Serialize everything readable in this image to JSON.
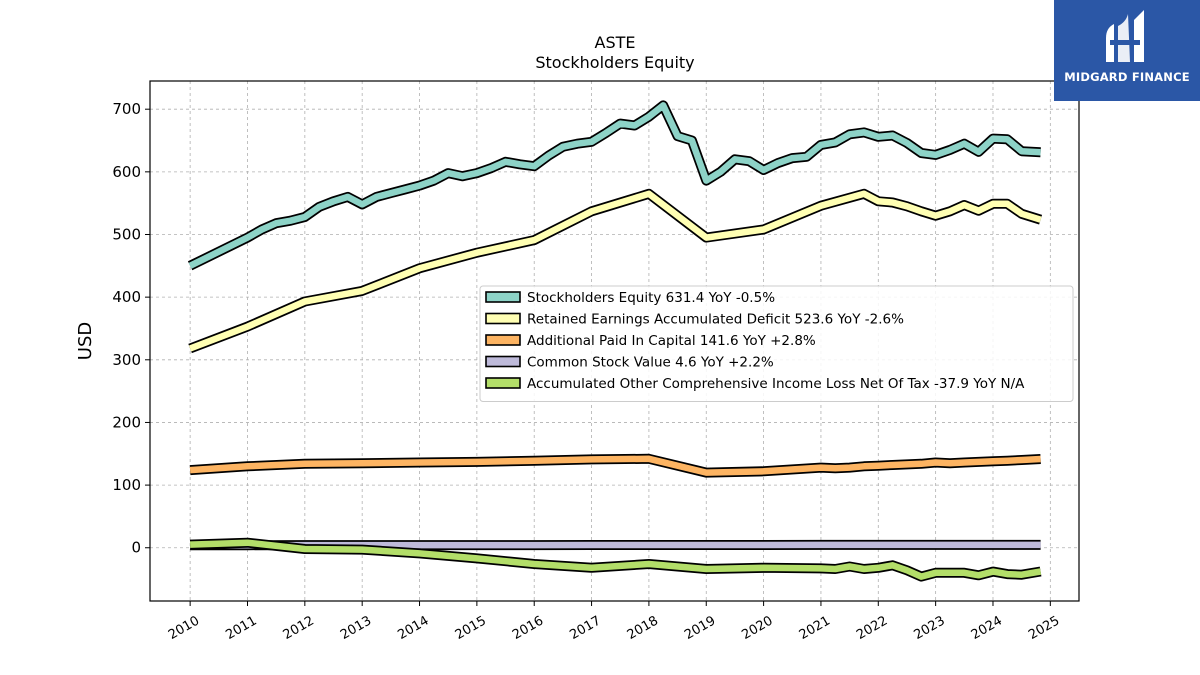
{
  "brand": {
    "name": "MIDGARD FINANCE",
    "bg_color": "#2b57a6"
  },
  "chart_data": {
    "type": "line",
    "title": "ASTE",
    "subtitle": "Stockholders  Equity",
    "xlabel": "",
    "ylabel": "USD",
    "xlim": [
      2009.3,
      2025.5
    ],
    "ylim": [
      -85,
      745
    ],
    "x_ticks": [
      "2010",
      "2011",
      "2012",
      "2013",
      "2014",
      "2015",
      "2016",
      "2017",
      "2018",
      "2019",
      "2020",
      "2021",
      "2022",
      "2023",
      "2024",
      "2025"
    ],
    "y_ticks": [
      0,
      100,
      200,
      300,
      400,
      500,
      600,
      700
    ],
    "grid": true,
    "legend_position": "center-right",
    "series": [
      {
        "name": "Stockholders Equity  631.4 YoY -0.5%",
        "color": "#8dd3c7",
        "x": [
          2010.0,
          2011.0,
          2011.25,
          2011.5,
          2011.75,
          2012.0,
          2012.25,
          2012.5,
          2012.75,
          2013.0,
          2013.25,
          2013.5,
          2013.75,
          2014.0,
          2014.25,
          2014.5,
          2014.75,
          2015.0,
          2015.25,
          2015.5,
          2015.75,
          2016.0,
          2016.25,
          2016.5,
          2016.75,
          2017.0,
          2017.25,
          2017.5,
          2017.75,
          2018.0,
          2018.25,
          2018.5,
          2018.75,
          2019.0,
          2019.25,
          2019.5,
          2019.75,
          2020.0,
          2020.25,
          2020.5,
          2020.75,
          2021.0,
          2021.25,
          2021.5,
          2021.75,
          2022.0,
          2022.25,
          2022.5,
          2022.75,
          2023.0,
          2023.25,
          2023.5,
          2023.75,
          2024.0,
          2024.25,
          2024.5,
          2024.83
        ],
        "values": [
          450,
          495,
          508,
          518,
          522,
          528,
          544,
          553,
          560,
          548,
          560,
          566,
          572,
          578,
          586,
          598,
          593,
          598,
          606,
          616,
          612,
          609,
          626,
          640,
          645,
          648,
          662,
          677,
          674,
          688,
          706,
          657,
          650,
          586,
          600,
          620,
          617,
          603,
          614,
          622,
          624,
          643,
          647,
          660,
          663,
          656,
          658,
          646,
          630,
          627,
          635,
          645,
          632,
          653,
          652,
          633,
          631.4
        ]
      },
      {
        "name": "Retained Earnings Accumulated Deficit  523.6 YoY -2.6%",
        "color": "#ffffb3",
        "x": [
          2010.0,
          2011.0,
          2012.0,
          2013.0,
          2014.0,
          2015.0,
          2016.0,
          2017.0,
          2018.0,
          2019.0,
          2020.0,
          2021.0,
          2021.75,
          2022.0,
          2022.25,
          2022.5,
          2022.75,
          2023.0,
          2023.25,
          2023.5,
          2023.75,
          2024.0,
          2024.25,
          2024.5,
          2024.83
        ],
        "values": [
          318,
          353,
          393,
          410,
          446,
          471,
          491,
          537,
          565,
          495,
          508,
          546,
          565,
          553,
          551,
          545,
          537,
          530,
          537,
          547,
          538,
          549,
          549,
          533,
          523.6
        ]
      },
      {
        "name": "Additional Paid In Capital  141.6 YoY +2.8%",
        "color": "#fdb462",
        "x": [
          2010.0,
          2011.0,
          2012.0,
          2013.0,
          2014.0,
          2015.0,
          2016.0,
          2017.0,
          2018.0,
          2019.0,
          2020.0,
          2021.0,
          2021.25,
          2021.5,
          2021.75,
          2022.0,
          2022.25,
          2022.5,
          2022.75,
          2023.0,
          2023.25,
          2023.5,
          2023.75,
          2024.0,
          2024.25,
          2024.5,
          2024.83
        ],
        "values": [
          124,
          130,
          134,
          135,
          136,
          137,
          139,
          141,
          142,
          120,
          122,
          128,
          127,
          128,
          130,
          131,
          132,
          133,
          134,
          136,
          135,
          136,
          137,
          138,
          139,
          140,
          141.6
        ]
      },
      {
        "name": "Common Stock Value  4.6 YoY +2.2%",
        "color": "#bebada",
        "x": [
          2010.0,
          2011.0,
          2012.0,
          2013.0,
          2014.0,
          2015.0,
          2016.0,
          2017.0,
          2018.0,
          2019.0,
          2020.0,
          2021.0,
          2022.0,
          2023.0,
          2024.0,
          2024.83
        ],
        "values": [
          4.0,
          4.1,
          4.2,
          4.2,
          4.3,
          4.3,
          4.3,
          4.4,
          4.4,
          4.4,
          4.4,
          4.5,
          4.5,
          4.5,
          4.5,
          4.6
        ]
      },
      {
        "name": "Accumulated Other Comprehensive Income Loss Net Of Tax  -37.9 YoY N/A",
        "color": "#b3de69",
        "x": [
          2010.0,
          2011.0,
          2012.0,
          2013.0,
          2014.0,
          2015.0,
          2016.0,
          2017.0,
          2018.0,
          2019.0,
          2020.0,
          2021.0,
          2021.25,
          2021.5,
          2021.75,
          2022.0,
          2022.25,
          2022.5,
          2022.75,
          2023.0,
          2023.25,
          2023.5,
          2023.75,
          2024.0,
          2024.25,
          2024.5,
          2024.83
        ],
        "values": [
          5,
          8,
          -2,
          -3,
          -9,
          -17,
          -26,
          -32,
          -26,
          -34,
          -32,
          -33,
          -34,
          -30,
          -34,
          -32,
          -28,
          -36,
          -46,
          -40,
          -40,
          -40,
          -44,
          -38,
          -42,
          -43,
          -37.9
        ]
      }
    ]
  }
}
